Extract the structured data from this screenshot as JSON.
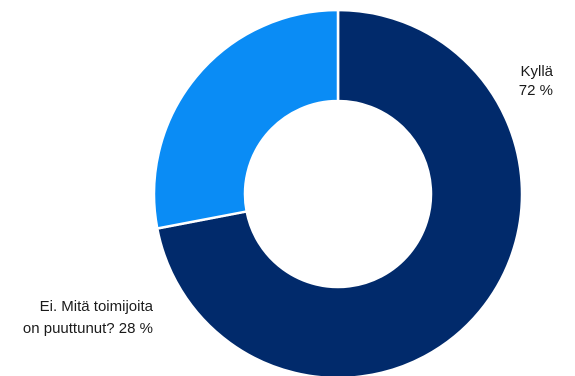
{
  "chart_data": {
    "type": "pie",
    "donut": true,
    "start": "top, clockwise",
    "slices": [
      {
        "label_lines": [
          "Kyllä",
          "72 %"
        ],
        "value": 72,
        "color": "#012a6b"
      },
      {
        "label_lines": [
          "Ei. Mitä toimijoita",
          "on puuttunut? 28 %"
        ],
        "value": 28,
        "color": "#0a8cf5"
      }
    ],
    "legend": "none",
    "grid": false
  }
}
